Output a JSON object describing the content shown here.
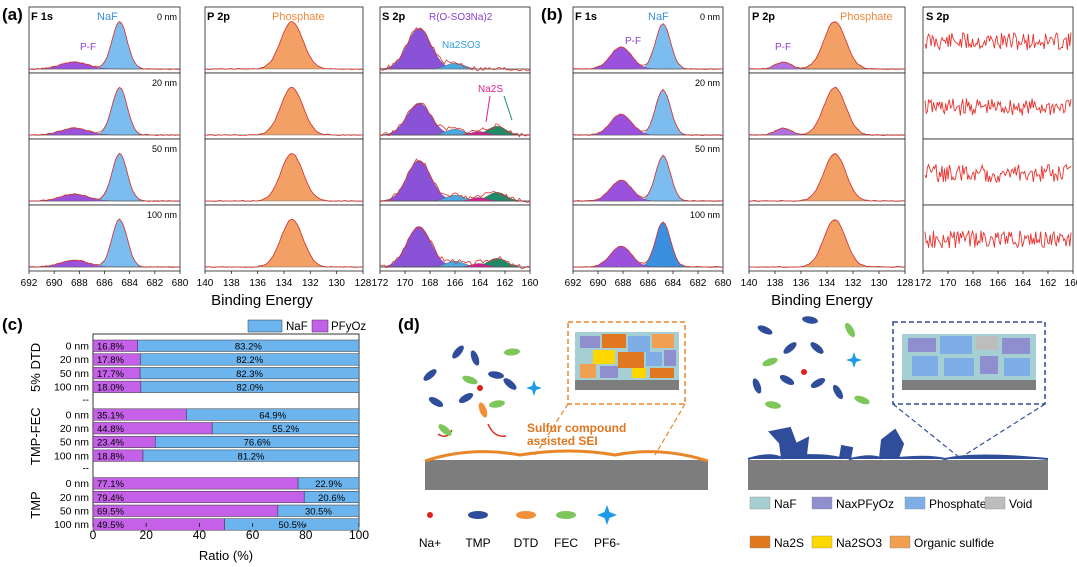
{
  "panel_labels": {
    "a": "(a)",
    "b": "(b)",
    "c": "(c)",
    "d": "(d)"
  },
  "xps": {
    "depths": [
      "0 nm",
      "20 nm",
      "50 nm",
      "100 nm"
    ],
    "x_title": "Binding Energy",
    "a": {
      "f1s": {
        "title": "F 1s",
        "naf_label": "NaF",
        "pf_label": "P-F",
        "ticks": [
          "692",
          "690",
          "688",
          "686",
          "684",
          "682",
          "680"
        ]
      },
      "p2p": {
        "title": "P 2p",
        "phosphate_label": "Phosphate",
        "ticks": [
          "140",
          "138",
          "136",
          "134",
          "132",
          "130",
          "128"
        ]
      },
      "s2p": {
        "title": "S 2p",
        "roso3_label": "R(O-SO3Na)2",
        "na2so3_label": "Na2SO3",
        "na2s_label": "Na2S",
        "ticks": [
          "172",
          "170",
          "168",
          "166",
          "164",
          "162",
          "160"
        ]
      }
    },
    "b": {
      "f1s": {
        "title": "F 1s",
        "naf_label": "NaF",
        "pf_label": "P-F",
        "ticks": [
          "692",
          "690",
          "688",
          "686",
          "684",
          "682",
          "680"
        ]
      },
      "p2p": {
        "title": "P 2p",
        "phosphate_label": "Phosphate",
        "pf_label": "P-F",
        "ticks": [
          "140",
          "138",
          "136",
          "134",
          "132",
          "130",
          "128"
        ]
      },
      "s2p": {
        "title": "S 2p",
        "ticks": [
          "172",
          "170",
          "168",
          "166",
          "164",
          "162",
          "160"
        ]
      }
    }
  },
  "chart_data": {
    "type": "bar",
    "orientation": "horizontal",
    "stacked": true,
    "xlabel": "Ratio (%)",
    "xlim": [
      0,
      100
    ],
    "xticks": [
      "0",
      "20",
      "40",
      "60",
      "80",
      "100"
    ],
    "legend": [
      {
        "name": "NaF",
        "color": "#6cb4ee"
      },
      {
        "name": "PFyOz",
        "color": "#c561e8"
      }
    ],
    "groups": [
      {
        "name": "5% DTD",
        "rows": [
          {
            "label": "0 nm",
            "pf": 16.8,
            "naf": 83.2,
            "pf_text": "16.8%",
            "naf_text": "83.2%"
          },
          {
            "label": "20 nm",
            "pf": 17.8,
            "naf": 82.2,
            "pf_text": "17.8%",
            "naf_text": "82.2%"
          },
          {
            "label": "50 nm",
            "pf": 17.7,
            "naf": 82.3,
            "pf_text": "17.7%",
            "naf_text": "82.3%"
          },
          {
            "label": "100 nm",
            "pf": 18.0,
            "naf": 82.0,
            "pf_text": "18.0%",
            "naf_text": "82.0%"
          }
        ]
      },
      {
        "name": "TMP-FEC",
        "rows": [
          {
            "label": "0 nm",
            "pf": 35.1,
            "naf": 64.9,
            "pf_text": "35.1%",
            "naf_text": "64.9%"
          },
          {
            "label": "20 nm",
            "pf": 44.8,
            "naf": 55.2,
            "pf_text": "44.8%",
            "naf_text": "55.2%"
          },
          {
            "label": "50 nm",
            "pf": 23.4,
            "naf": 76.6,
            "pf_text": "23.4%",
            "naf_text": "76.6%"
          },
          {
            "label": "100 nm",
            "pf": 18.8,
            "naf": 81.2,
            "pf_text": "18.8%",
            "naf_text": "81.2%"
          }
        ]
      },
      {
        "name": "TMP",
        "rows": [
          {
            "label": "0 nm",
            "pf": 77.1,
            "naf": 22.9,
            "pf_text": "77.1%",
            "naf_text": "22.9%"
          },
          {
            "label": "20 nm",
            "pf": 79.4,
            "naf": 20.6,
            "pf_text": "79.4%",
            "naf_text": "20.6%"
          },
          {
            "label": "50 nm",
            "pf": 69.5,
            "naf": 30.5,
            "pf_text": "69.5%",
            "naf_text": "30.5%"
          },
          {
            "label": "100 nm",
            "pf": 49.5,
            "naf": 50.5,
            "pf_text": "49.5%",
            "naf_text": "50.5%"
          }
        ]
      }
    ],
    "separator": "--"
  },
  "schematic": {
    "callout": "Sulfur compound assisted SEI",
    "species": [
      {
        "name": "Na+",
        "color": "#e0201b"
      },
      {
        "name": "TMP",
        "color": "#2f4d9a"
      },
      {
        "name": "DTD",
        "color": "#f0903a"
      },
      {
        "name": "FEC",
        "color": "#7cc65a"
      },
      {
        "name": "PF6-",
        "color": "#1e9be8"
      }
    ],
    "legend": [
      {
        "name": "NaF",
        "color": "#a6cfd4"
      },
      {
        "name": "NaxPFyOz",
        "color": "#8f8fd0"
      },
      {
        "name": "Phosphate",
        "color": "#7faee6"
      },
      {
        "name": "Void",
        "color": "#bdbdbd"
      },
      {
        "name": "Na2S",
        "color": "#e07820"
      },
      {
        "name": "Na2SO3",
        "color": "#ffd700"
      },
      {
        "name": "Organic sulfide",
        "color": "#f0a050"
      }
    ]
  }
}
